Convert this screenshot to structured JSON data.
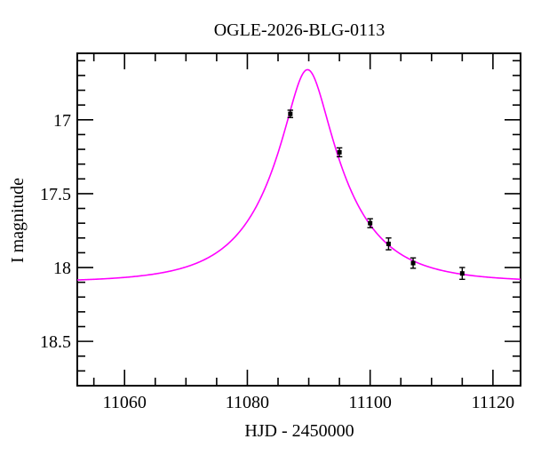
{
  "chart_data": {
    "type": "scatter",
    "title": "OGLE-2026-BLG-0113",
    "xlabel": "HJD - 2450000",
    "ylabel": "I magnitude",
    "x_range": [
      11052.3,
      11124.5
    ],
    "y_range_mag": [
      16.55,
      18.8
    ],
    "y_axis_inverted": true,
    "grid": false,
    "legend": "none",
    "x_major_ticks": [
      {
        "value": 11060,
        "label": "11060"
      },
      {
        "value": 11080,
        "label": "11080"
      },
      {
        "value": 11100,
        "label": "11100"
      },
      {
        "value": 11120,
        "label": "11120"
      }
    ],
    "x_minor_step": 5,
    "y_major_ticks": [
      {
        "value": 17.0,
        "label": "17"
      },
      {
        "value": 17.5,
        "label": "17.5"
      },
      {
        "value": 18.0,
        "label": "18"
      },
      {
        "value": 18.5,
        "label": "18.5"
      }
    ],
    "y_minor_step": 0.1,
    "model_curve": {
      "kind": "paczynski-microlensing",
      "baseline_mag": 18.1,
      "t0": 11089.8,
      "u0": 0.273,
      "tE_days": 12.0,
      "peak_mag": 16.66,
      "color": "#ff00ff"
    },
    "points": [
      {
        "hjd": 11087,
        "mag": 16.96,
        "err": 0.025
      },
      {
        "hjd": 11095,
        "mag": 17.22,
        "err": 0.03
      },
      {
        "hjd": 11100,
        "mag": 17.7,
        "err": 0.03
      },
      {
        "hjd": 11103,
        "mag": 17.84,
        "err": 0.04
      },
      {
        "hjd": 11107,
        "mag": 17.97,
        "err": 0.035
      },
      {
        "hjd": 11115,
        "mag": 18.04,
        "err": 0.04
      }
    ],
    "point_color": "#000000",
    "frame_color": "#000000"
  }
}
